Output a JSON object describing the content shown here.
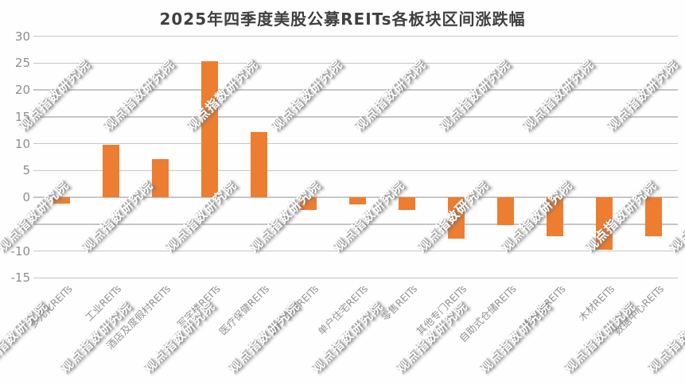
{
  "title": "2025年四季度美股公募REITs各板块区间涨跌幅",
  "watermark": {
    "text": "观点指数研究院"
  },
  "colors": {
    "bar": "#ED7D31",
    "gridline": "#C6C6C6",
    "axis_text": "#8E8E8E",
    "title_text": "#404040",
    "background": "#FEFEFE",
    "watermark_text": "#FFFFFF"
  },
  "chart_data": {
    "type": "bar",
    "title": "2025年四季度美股公募REITs各板块区间涨跌幅",
    "categories": [
      "多元化REITs",
      "工业REITs",
      "酒店及度假村REITs",
      "写字楼REITs",
      "医疗保健REITs",
      "多户住宅REITs",
      "单户住宅REITs",
      "零售REITs",
      "其他专门REITs",
      "自助式仓储REITs",
      "电信塔REITs",
      "木材REITs",
      "数据中心REITs"
    ],
    "values": [
      -1.2,
      9.8,
      7.1,
      25.4,
      12.2,
      -2.4,
      -1.4,
      -2.4,
      -7.7,
      -5.2,
      -7.3,
      -9.8,
      -7.3
    ],
    "series_color": "#ED7D31",
    "xlabel": "",
    "ylabel": "",
    "ylim": [
      -15,
      30
    ],
    "y_axis": {
      "ticks": [
        30,
        25,
        20,
        15,
        10,
        5,
        0,
        -5,
        -10,
        -15
      ]
    },
    "grid": true,
    "legend": false
  }
}
